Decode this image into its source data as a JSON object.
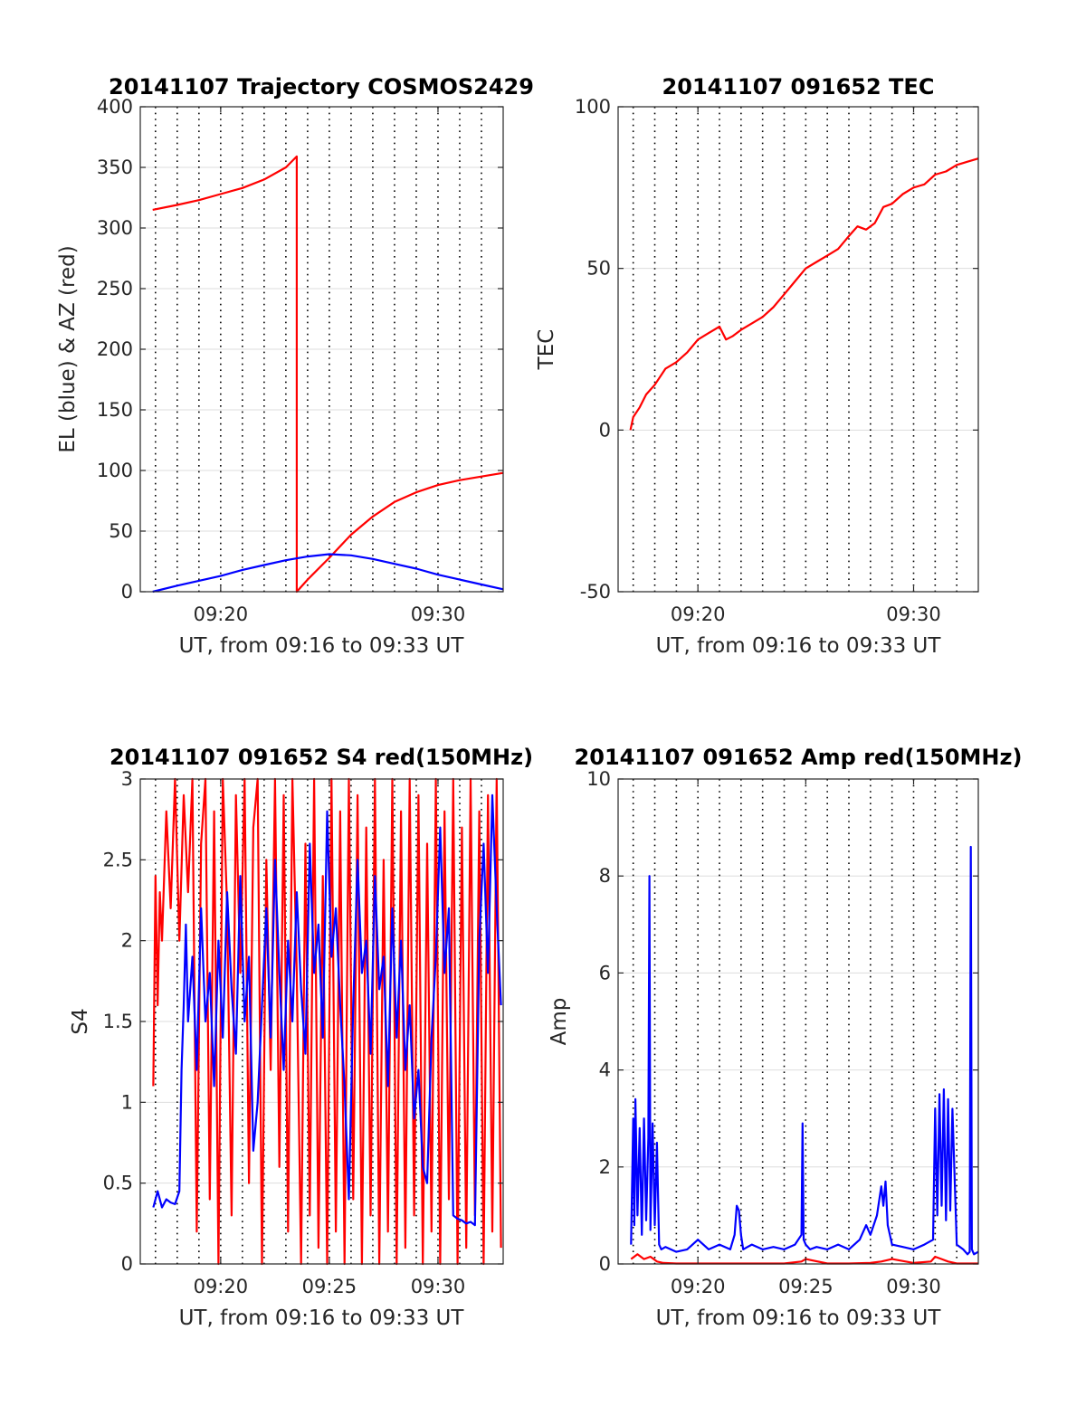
{
  "colors": {
    "el": "#0000ff",
    "az": "#ff0000",
    "axis": "#262626",
    "grid": "#dddddd",
    "vline": "#000000"
  },
  "chart_data": [
    {
      "type": "line",
      "title": "20141107 Trajectory COSMOS2429",
      "xlabel": "UT, from 09:16 to 09:33 UT",
      "ylabel": "EL (blue) & AZ (red)",
      "x_unit": "minutes after 09:00 UT",
      "xlim": [
        16.3,
        33.0
      ],
      "ylim": [
        0,
        400
      ],
      "x_ticks": [
        {
          "v": 20,
          "label": "09:20"
        },
        {
          "v": 30,
          "label": "09:30"
        }
      ],
      "y_ticks": [
        {
          "v": 0,
          "label": "0"
        },
        {
          "v": 50,
          "label": "50"
        },
        {
          "v": 100,
          "label": "100"
        },
        {
          "v": 150,
          "label": "150"
        },
        {
          "v": 200,
          "label": "200"
        },
        {
          "v": 250,
          "label": "250"
        },
        {
          "v": 300,
          "label": "300"
        },
        {
          "v": 350,
          "label": "350"
        },
        {
          "v": 400,
          "label": "400"
        }
      ],
      "vlines": [
        17.0,
        18.0,
        19.0,
        20.0,
        21.0,
        22.0,
        23.0,
        24.0,
        25.0,
        26.0,
        27.0,
        28.0,
        29.0,
        30.0,
        31.0,
        32.0
      ],
      "grid": "horizontal",
      "series": [
        {
          "color": "#ff0000",
          "x": [
            16.87,
            18.0,
            19.0,
            20.0,
            21.0,
            22.0,
            23.0,
            23.5,
            23.5,
            24.0,
            25.0,
            26.0,
            27.0,
            28.0,
            29.0,
            30.0,
            31.0,
            32.0,
            33.0
          ],
          "y": [
            315,
            319,
            323,
            328,
            333,
            340,
            350,
            359,
            0,
            10,
            28,
            47,
            62,
            74,
            82,
            88,
            92,
            95,
            98
          ]
        },
        {
          "color": "#0000ff",
          "x": [
            16.87,
            18.0,
            19.0,
            20.0,
            21.0,
            22.0,
            23.0,
            24.0,
            25.0,
            26.0,
            27.0,
            28.0,
            29.0,
            30.0,
            31.0,
            32.0,
            33.0
          ],
          "y": [
            0,
            5,
            9,
            13,
            18,
            22,
            26,
            29,
            31,
            30,
            27,
            23,
            19,
            14,
            10,
            6,
            2
          ]
        }
      ]
    },
    {
      "type": "line",
      "title": "20141107 091652 TEC",
      "xlabel": "UT, from 09:16 to 09:33 UT",
      "ylabel": "TEC",
      "x_unit": "minutes after 09:00 UT",
      "xlim": [
        16.3,
        33.0
      ],
      "ylim": [
        -50,
        100
      ],
      "x_ticks": [
        {
          "v": 20,
          "label": "09:20"
        },
        {
          "v": 30,
          "label": "09:30"
        }
      ],
      "y_ticks": [
        {
          "v": -50,
          "label": "-50"
        },
        {
          "v": 0,
          "label": "0"
        },
        {
          "v": 50,
          "label": "50"
        },
        {
          "v": 100,
          "label": "100"
        }
      ],
      "vlines": [
        17.0,
        18.0,
        19.0,
        20.0,
        21.0,
        22.0,
        23.0,
        24.0,
        25.0,
        26.0,
        27.0,
        28.0,
        29.0,
        30.0,
        31.0,
        32.0
      ],
      "grid": "horizontal",
      "series": [
        {
          "color": "#ff0000",
          "x": [
            16.87,
            17.0,
            17.3,
            17.6,
            18.0,
            18.5,
            19.0,
            19.5,
            20.0,
            20.5,
            21.0,
            21.3,
            21.6,
            22.0,
            22.5,
            23.0,
            23.5,
            24.0,
            24.5,
            25.0,
            25.5,
            26.0,
            26.5,
            27.0,
            27.4,
            27.8,
            28.2,
            28.6,
            29.0,
            29.5,
            30.0,
            30.5,
            31.0,
            31.5,
            32.0,
            32.5,
            33.0
          ],
          "y": [
            0,
            4,
            7,
            11,
            14,
            19,
            21,
            24,
            28,
            30,
            32,
            28,
            29,
            31,
            33,
            35,
            38,
            42,
            46,
            50,
            52,
            54,
            56,
            60,
            63,
            62,
            64,
            69,
            70,
            73,
            75,
            76,
            79,
            80,
            82,
            83,
            84
          ]
        }
      ]
    },
    {
      "type": "line",
      "title": "20141107 091652 S4 red(150MHz)",
      "xlabel": "UT, from 09:16 to 09:33 UT",
      "ylabel": "S4",
      "x_unit": "minutes after 09:00 UT",
      "xlim": [
        16.3,
        33.0
      ],
      "ylim": [
        0,
        3
      ],
      "x_ticks": [
        {
          "v": 20,
          "label": "09:20"
        },
        {
          "v": 25,
          "label": "09:25"
        },
        {
          "v": 30,
          "label": "09:30"
        }
      ],
      "y_ticks": [
        {
          "v": 0,
          "label": "0"
        },
        {
          "v": 0.5,
          "label": "0.5"
        },
        {
          "v": 1,
          "label": "1"
        },
        {
          "v": 1.5,
          "label": "1.5"
        },
        {
          "v": 2,
          "label": "2"
        },
        {
          "v": 2.5,
          "label": "2.5"
        },
        {
          "v": 3,
          "label": "3"
        }
      ],
      "vlines": [
        17.0,
        18.0,
        19.0,
        20.0,
        21.0,
        22.0,
        23.0,
        24.0,
        25.0,
        26.0,
        27.0,
        28.0,
        29.0,
        30.0,
        31.0,
        32.0
      ],
      "grid": "horizontal",
      "series": [
        {
          "color": "#ff0000",
          "x": [
            16.9,
            17.0,
            17.1,
            17.2,
            17.3,
            17.5,
            17.7,
            17.9,
            18.1,
            18.3,
            18.5,
            18.7,
            18.9,
            19.1,
            19.3,
            19.5,
            19.7,
            19.9,
            20.1,
            20.3,
            20.5,
            20.7,
            20.9,
            21.1,
            21.3,
            21.5,
            21.7,
            21.9,
            22.1,
            22.3,
            22.5,
            22.7,
            22.9,
            23.1,
            23.3,
            23.5,
            23.7,
            23.9,
            24.1,
            24.3,
            24.5,
            24.7,
            24.9,
            25.1,
            25.3,
            25.5,
            25.7,
            25.9,
            26.1,
            26.3,
            26.5,
            26.7,
            26.9,
            27.1,
            27.3,
            27.5,
            27.7,
            27.9,
            28.1,
            28.3,
            28.5,
            28.7,
            28.9,
            29.1,
            29.3,
            29.5,
            29.7,
            29.9,
            30.1,
            30.3,
            30.5,
            30.7,
            30.9,
            31.1,
            31.3,
            31.5,
            31.7,
            31.9,
            32.1,
            32.3,
            32.5,
            32.7,
            32.9
          ],
          "y": [
            1.1,
            2.4,
            1.6,
            2.3,
            2.0,
            2.8,
            2.2,
            3.0,
            2.0,
            2.9,
            2.3,
            3.0,
            0.2,
            2.6,
            3.0,
            0.4,
            2.8,
            0.0,
            3.0,
            2.2,
            0.3,
            2.9,
            1.8,
            3.0,
            0.5,
            2.7,
            3.0,
            0.0,
            2.5,
            1.2,
            3.0,
            0.6,
            2.9,
            0.2,
            3.0,
            1.8,
            0.0,
            2.6,
            0.3,
            3.0,
            0.1,
            2.4,
            0.0,
            3.0,
            0.2,
            2.8,
            0.0,
            3.0,
            0.4,
            2.9,
            0.0,
            2.7,
            0.3,
            3.0,
            0.0,
            2.5,
            0.2,
            3.0,
            0.0,
            2.8,
            0.1,
            3.0,
            0.3,
            2.9,
            0.0,
            2.6,
            0.2,
            3.0,
            0.0,
            2.8,
            0.4,
            3.0,
            0.0,
            2.7,
            0.1,
            3.0,
            0.3,
            2.8,
            0.0,
            2.9,
            0.2,
            3.0,
            0.1
          ]
        },
        {
          "color": "#0000ff",
          "x": [
            16.9,
            17.1,
            17.3,
            17.5,
            17.7,
            17.9,
            18.1,
            18.2,
            18.3,
            18.4,
            18.5,
            18.7,
            18.9,
            19.1,
            19.3,
            19.5,
            19.7,
            19.9,
            20.1,
            20.3,
            20.5,
            20.7,
            20.9,
            21.1,
            21.3,
            21.5,
            21.7,
            21.9,
            22.1,
            22.3,
            22.5,
            22.7,
            22.9,
            23.1,
            23.3,
            23.5,
            23.7,
            23.9,
            24.1,
            24.3,
            24.5,
            24.7,
            24.9,
            25.1,
            25.3,
            25.5,
            25.7,
            25.9,
            26.1,
            26.3,
            26.5,
            26.7,
            26.9,
            27.1,
            27.3,
            27.5,
            27.7,
            27.9,
            28.1,
            28.3,
            28.5,
            28.7,
            28.9,
            29.1,
            29.3,
            29.5,
            29.7,
            29.9,
            30.1,
            30.3,
            30.5,
            30.7,
            30.9,
            31.1,
            31.3,
            31.5,
            31.7,
            31.9,
            32.1,
            32.3,
            32.5,
            32.7,
            32.9
          ],
          "y": [
            0.35,
            0.45,
            0.35,
            0.4,
            0.38,
            0.37,
            0.45,
            1.2,
            1.6,
            2.1,
            1.5,
            1.9,
            1.2,
            2.2,
            1.5,
            1.8,
            1.1,
            2.0,
            1.4,
            2.3,
            1.7,
            1.3,
            2.4,
            1.5,
            1.9,
            0.7,
            1.0,
            1.6,
            2.2,
            1.4,
            2.5,
            1.8,
            1.2,
            2.0,
            1.5,
            2.3,
            1.7,
            1.3,
            2.6,
            1.8,
            2.1,
            1.4,
            2.8,
            1.9,
            2.2,
            1.6,
            1.1,
            0.4,
            1.6,
            2.5,
            1.8,
            2.0,
            1.3,
            2.4,
            1.7,
            1.9,
            1.1,
            2.2,
            1.4,
            2.0,
            1.2,
            1.6,
            0.9,
            1.2,
            0.6,
            0.5,
            1.4,
            1.9,
            2.7,
            1.8,
            2.2,
            0.3,
            0.28,
            0.27,
            0.25,
            0.26,
            0.24,
            2.0,
            2.6,
            1.8,
            2.9,
            2.2,
            1.6
          ]
        }
      ]
    },
    {
      "type": "line",
      "title": "20141107 091652 Amp red(150MHz)",
      "xlabel": "UT, from 09:16 to 09:33 UT",
      "ylabel": "Amp",
      "x_unit": "minutes after 09:00 UT",
      "xlim": [
        16.3,
        33.0
      ],
      "ylim": [
        0,
        10
      ],
      "x_ticks": [
        {
          "v": 20,
          "label": "09:20"
        },
        {
          "v": 25,
          "label": "09:25"
        },
        {
          "v": 30,
          "label": "09:30"
        }
      ],
      "y_ticks": [
        {
          "v": 0,
          "label": "0"
        },
        {
          "v": 2,
          "label": "2"
        },
        {
          "v": 4,
          "label": "4"
        },
        {
          "v": 6,
          "label": "6"
        },
        {
          "v": 8,
          "label": "8"
        },
        {
          "v": 10,
          "label": "10"
        }
      ],
      "vlines": [
        17.0,
        18.0,
        19.0,
        20.0,
        21.0,
        22.0,
        23.0,
        24.0,
        25.0,
        26.0,
        27.0,
        28.0,
        29.0,
        30.0,
        31.0,
        32.0
      ],
      "grid": "horizontal",
      "series": [
        {
          "color": "#ff0000",
          "x": [
            16.9,
            17.2,
            17.5,
            17.8,
            18.1,
            18.4,
            19.0,
            20.0,
            21.0,
            22.0,
            23.0,
            24.0,
            24.8,
            25.0,
            26.0,
            27.0,
            28.0,
            28.5,
            29.0,
            30.0,
            30.8,
            31.0,
            31.3,
            31.6,
            32.0,
            33.0
          ],
          "y": [
            0.1,
            0.2,
            0.1,
            0.15,
            0.05,
            0.02,
            0.01,
            0.01,
            0.01,
            0.01,
            0.01,
            0.01,
            0.05,
            0.1,
            0.01,
            0.01,
            0.02,
            0.05,
            0.1,
            0.02,
            0.05,
            0.15,
            0.1,
            0.05,
            0.01,
            0.01
          ]
        },
        {
          "color": "#0000ff",
          "x": [
            16.9,
            17.0,
            17.05,
            17.1,
            17.2,
            17.3,
            17.4,
            17.5,
            17.6,
            17.7,
            17.75,
            17.8,
            17.9,
            18.0,
            18.1,
            18.2,
            18.3,
            18.5,
            19.0,
            19.5,
            20.0,
            20.5,
            21.0,
            21.5,
            21.7,
            21.8,
            21.9,
            22.0,
            22.1,
            22.3,
            22.5,
            23.0,
            23.5,
            24.0,
            24.5,
            24.8,
            24.85,
            24.9,
            25.0,
            25.2,
            25.5,
            26.0,
            26.5,
            27.0,
            27.5,
            27.8,
            28.0,
            28.3,
            28.5,
            28.6,
            28.7,
            28.8,
            29.0,
            29.5,
            30.0,
            30.5,
            30.9,
            31.0,
            31.1,
            31.2,
            31.3,
            31.4,
            31.5,
            31.6,
            31.7,
            31.8,
            32.0,
            32.3,
            32.5,
            32.6,
            32.65,
            32.7,
            32.8,
            33.0
          ],
          "y": [
            0.4,
            3.0,
            0.8,
            3.4,
            1.0,
            2.8,
            0.6,
            3.0,
            0.9,
            2.6,
            8.0,
            0.7,
            2.9,
            0.8,
            2.5,
            0.4,
            0.3,
            0.35,
            0.25,
            0.3,
            0.5,
            0.3,
            0.4,
            0.3,
            0.6,
            1.2,
            1.1,
            0.6,
            0.3,
            0.35,
            0.4,
            0.3,
            0.35,
            0.3,
            0.4,
            0.6,
            2.9,
            0.5,
            0.4,
            0.3,
            0.35,
            0.3,
            0.4,
            0.3,
            0.5,
            0.8,
            0.6,
            1.0,
            1.6,
            1.2,
            1.7,
            0.8,
            0.4,
            0.35,
            0.3,
            0.4,
            0.5,
            3.2,
            1.0,
            3.5,
            1.2,
            3.6,
            0.9,
            3.4,
            1.1,
            3.2,
            0.4,
            0.3,
            0.2,
            0.25,
            8.6,
            0.3,
            0.2,
            0.25
          ]
        }
      ]
    }
  ]
}
